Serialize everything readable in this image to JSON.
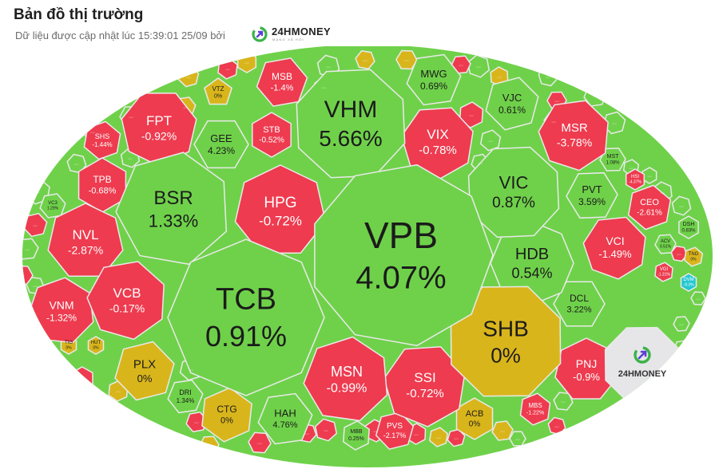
{
  "header": {
    "title": "Bản đồ thị trường",
    "subtitle": "Dữ liệu được cập nhật lúc 15:39:01 25/09 bởi",
    "brand_name": "24HMONEY",
    "brand_tagline": "MẠNG XÃ HỘI"
  },
  "colors": {
    "up": "#6fd14a",
    "down": "#ee3b4f",
    "flat": "#d9b51c",
    "ceiling": "#d63be0",
    "floor": "#23c7cf",
    "brand_cell": "#e6e6e9"
  },
  "chart_data": {
    "type": "heatmap",
    "more_label": "...",
    "brand_label": "24HMONEY",
    "stocks": [
      {
        "ticker": "VPB",
        "change": "4.07%",
        "value": 4.07
      },
      {
        "ticker": "TCB",
        "change": "0.91%",
        "value": 0.91
      },
      {
        "ticker": "VHM",
        "change": "5.66%",
        "value": 5.66
      },
      {
        "ticker": "SHB",
        "change": "0%",
        "value": 0
      },
      {
        "ticker": "BSR",
        "change": "1.33%",
        "value": 1.33
      },
      {
        "ticker": "HPG",
        "change": "-0.72%",
        "value": -0.72
      },
      {
        "ticker": "VIC",
        "change": "0.87%",
        "value": 0.87
      },
      {
        "ticker": "HDB",
        "change": "0.54%",
        "value": 0.54
      },
      {
        "ticker": "MSN",
        "change": "-0.99%",
        "value": -0.99
      },
      {
        "ticker": "SSI",
        "change": "-0.72%",
        "value": -0.72
      },
      {
        "ticker": "VIX",
        "change": "-0.78%",
        "value": -0.78
      },
      {
        "ticker": "VCB",
        "change": "-0.17%",
        "value": -0.17
      },
      {
        "ticker": "NVL",
        "change": "-2.87%",
        "value": -2.87
      },
      {
        "ticker": "FPT",
        "change": "-0.92%",
        "value": -0.92
      },
      {
        "ticker": "MSR",
        "change": "-3.78%",
        "value": -3.78
      },
      {
        "ticker": "VNM",
        "change": "-1.32%",
        "value": -1.32
      },
      {
        "ticker": "PLX",
        "change": "0%",
        "value": 0
      },
      {
        "ticker": "PNJ",
        "change": "-0.9%",
        "value": -0.9
      },
      {
        "ticker": "VCI",
        "change": "-1.49%",
        "value": -1.49
      },
      {
        "ticker": "GEE",
        "change": "4.23%",
        "value": 4.23
      },
      {
        "ticker": "MWG",
        "change": "0.69%",
        "value": 0.69
      },
      {
        "ticker": "VJC",
        "change": "0.61%",
        "value": 0.61
      },
      {
        "ticker": "PVT",
        "change": "3.59%",
        "value": 3.59
      },
      {
        "ticker": "DCL",
        "change": "3.22%",
        "value": 3.22
      },
      {
        "ticker": "HAH",
        "change": "4.76%",
        "value": 4.76
      },
      {
        "ticker": "CTG",
        "change": "0%",
        "value": 0
      },
      {
        "ticker": "TPB",
        "change": "-0.68%",
        "value": -0.68
      },
      {
        "ticker": "MSB",
        "change": "-1.4%",
        "value": -1.4
      },
      {
        "ticker": "STB",
        "change": "-0.52%",
        "value": -0.52
      },
      {
        "ticker": "CEO",
        "change": "-2.61%",
        "value": -2.61
      },
      {
        "ticker": "ACB",
        "change": "0%",
        "value": 0
      },
      {
        "ticker": "PVS",
        "change": "-2.17%",
        "value": -2.17
      },
      {
        "ticker": "SHS",
        "change": "-1.44%",
        "value": -1.44
      },
      {
        "ticker": "DRI",
        "change": "1.34%",
        "value": 1.34
      },
      {
        "ticker": "VTZ",
        "change": "0%",
        "value": 0
      },
      {
        "ticker": "MBS",
        "change": "-1.22%",
        "value": -1.22
      },
      {
        "ticker": "MBB",
        "change": "0.25%",
        "value": 0.25
      },
      {
        "ticker": "MST",
        "change": "1.08%",
        "value": 1.08
      },
      {
        "ticker": "HSI",
        "change": "-4.37%",
        "value": -4.37
      },
      {
        "ticker": "DSH",
        "change": "0.83%",
        "value": 0.83
      },
      {
        "ticker": "ACV",
        "change": "0.51%",
        "value": 0.51
      },
      {
        "ticker": "VGI",
        "change": "-1.31%",
        "value": -1.31
      },
      {
        "ticker": "TNG",
        "change": "0%",
        "value": 0
      },
      {
        "ticker": "DVM",
        "change": "-9.3%",
        "value": -9.3
      },
      {
        "ticker": "VC3",
        "change": "1.29%",
        "value": 1.29
      },
      {
        "ticker": "TIG",
        "change": "0%",
        "value": 0
      },
      {
        "ticker": "HUT",
        "change": "0%",
        "value": 0
      }
    ]
  }
}
